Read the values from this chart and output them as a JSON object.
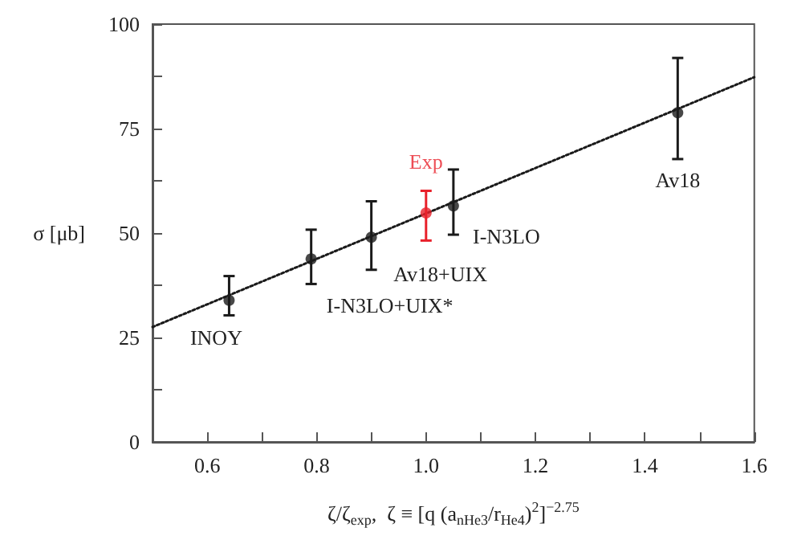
{
  "chart_data": {
    "type": "scatter",
    "xlabel": "ζ/ζ$_{exp}$,  ζ ≡ [q (a$_{nHe3}$/r$_{He4}$)$^{2}$]$^{−2.75}$",
    "ylabel": "σ [μb]",
    "xlim": [
      0.5,
      1.6
    ],
    "xticks": [
      {
        "value": 0.5,
        "label": null
      },
      0.6,
      {
        "value": 0.7,
        "label": null
      },
      0.8,
      {
        "value": 0.9,
        "label": null
      },
      {
        "value": 1.0,
        "label": "1.0"
      },
      {
        "value": 1.1,
        "label": null
      },
      1.2,
      {
        "value": 1.3,
        "label": null
      },
      1.4,
      {
        "value": 1.5,
        "label": null
      },
      1.6
    ],
    "ylim": [
      0,
      100
    ],
    "yticks": [
      0,
      {
        "value": 12.5,
        "label": null
      },
      25,
      {
        "value": 37.5,
        "label": null
      },
      50,
      {
        "value": 62.5,
        "label": null
      },
      75,
      {
        "value": 87.5,
        "label": null
      },
      100
    ],
    "grid": false,
    "marker": "circle",
    "series": [
      {
        "type": "line",
        "color": "#1a1a1a",
        "x": [
          0.5,
          1.6
        ],
        "values": [
          27.5,
          87.3
        ],
        "line_style": "dotted",
        "marker": "none"
      },
      {
        "type": "scatter",
        "color": "#1a1a1a",
        "x": [
          0.64,
          0.79,
          0.9,
          1.05,
          1.46
        ],
        "values": [
          33.9,
          43.8,
          49.0,
          56.5,
          78.8
        ],
        "errors": [
          [
            30.3,
            39.7
          ],
          [
            37.8,
            50.8
          ],
          [
            41.2,
            57.6
          ],
          [
            49.6,
            65.2
          ],
          [
            67.7,
            91.9
          ]
        ]
      },
      {
        "type": "scatter",
        "name": "Exp",
        "color": "#e8202a",
        "x": [
          1.0
        ],
        "values": [
          54.8
        ],
        "errors": [
          [
            48.2,
            60.1
          ]
        ]
      }
    ],
    "annotations": [
      {
        "text": "INOY",
        "x": 0.64,
        "y": 33.9
      },
      {
        "text": "I-N3LO+UIX*",
        "x": 0.79,
        "y": 43.8
      },
      {
        "text": "Av18+UIX",
        "x": 0.9,
        "y": 49.0
      },
      {
        "text": "I-N3LO",
        "x": 1.05,
        "y": 56.5
      },
      {
        "text": "Av18",
        "x": 1.46,
        "y": 78.8
      }
    ]
  }
}
